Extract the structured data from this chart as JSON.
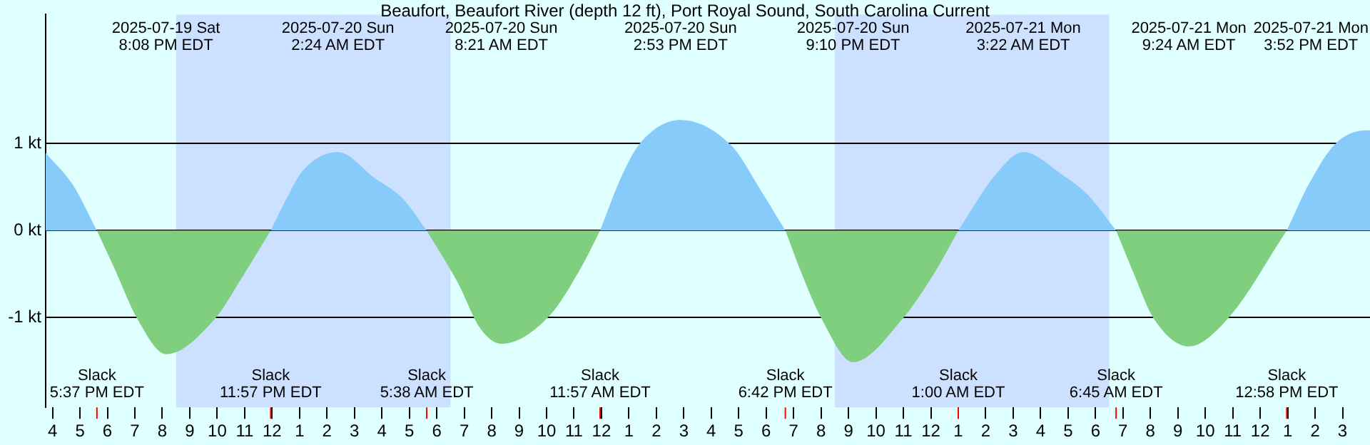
{
  "chart_data": {
    "type": "area",
    "title": "Beaufort, Beaufort River (depth 12 ft), Port Royal Sound, South Carolina Current",
    "x": [
      "2025-07-19T15:45",
      "2025-07-19T16:45",
      "2025-07-19T17:37",
      "2025-07-19T18:15",
      "2025-07-19T19:06",
      "2025-07-19T20:08",
      "2025-07-19T21:54",
      "2025-07-19T22:54",
      "2025-07-19T23:57",
      "2025-07-20T00:30",
      "2025-07-20T01:06",
      "2025-07-20T02:24",
      "2025-07-20T03:45",
      "2025-07-20T04:45",
      "2025-07-20T05:38",
      "2025-07-20T06:45",
      "2025-07-20T07:36",
      "2025-07-20T08:21",
      "2025-07-20T10:06",
      "2025-07-20T11:15",
      "2025-07-20T11:57",
      "2025-07-20T12:42",
      "2025-07-20T13:24",
      "2025-07-20T14:53",
      "2025-07-20T16:45",
      "2025-07-20T17:45",
      "2025-07-20T18:42",
      "2025-07-20T19:18",
      "2025-07-20T20:00",
      "2025-07-20T21:10",
      "2025-07-20T23:00",
      "2025-07-21T00:12",
      "2025-07-21T01:00",
      "2025-07-21T01:36",
      "2025-07-21T02:15",
      "2025-07-21T03:22",
      "2025-07-21T04:45",
      "2025-07-21T05:45",
      "2025-07-21T06:45",
      "2025-07-21T07:24",
      "2025-07-21T08:06",
      "2025-07-21T09:24",
      "2025-07-21T10:51",
      "2025-07-21T12:58",
      "2025-07-21T13:48",
      "2025-07-21T14:45",
      "2025-07-21T15:52",
      "2025-07-21T16:00"
    ],
    "series": [
      {
        "color": "#87cbfb",
        "values": [
          0.89,
          0.52,
          0,
          null,
          null,
          null,
          null,
          null,
          0,
          0.35,
          0.68,
          0.9,
          0.6,
          0.37,
          0,
          null,
          null,
          null,
          null,
          null,
          0,
          0.6,
          1.0,
          1.27,
          0.97,
          0.49,
          0,
          null,
          null,
          null,
          null,
          null,
          0,
          0.3,
          0.6,
          0.9,
          0.65,
          0.4,
          0,
          null,
          null,
          null,
          null,
          0,
          0.55,
          1.0,
          1.15,
          1.15
        ]
      },
      {
        "color": "#7fcf7f",
        "values": [
          null,
          null,
          0,
          -0.43,
          -1.02,
          -1.42,
          -1.02,
          -0.54,
          0,
          null,
          null,
          null,
          null,
          null,
          0,
          -0.59,
          -1.13,
          -1.3,
          -0.98,
          -0.43,
          0,
          null,
          null,
          null,
          null,
          null,
          0,
          -0.5,
          -1.0,
          -1.51,
          -1.0,
          -0.45,
          0,
          null,
          null,
          null,
          null,
          null,
          0,
          -0.5,
          -1.0,
          -1.33,
          -1.0,
          0,
          null,
          null,
          null,
          null
        ]
      }
    ],
    "xlim": [
      "2025-07-19T15:45",
      "2025-07-21T16:00"
    ],
    "xticks": [
      {
        "value": "2025-07-19T16:00",
        "label": "4"
      },
      {
        "value": "2025-07-19T17:00",
        "label": "5"
      },
      {
        "value": "2025-07-19T18:00",
        "label": "6"
      },
      {
        "value": "2025-07-19T19:00",
        "label": "7"
      },
      {
        "value": "2025-07-19T20:00",
        "label": "8"
      },
      {
        "value": "2025-07-19T21:00",
        "label": "9"
      },
      {
        "value": "2025-07-19T22:00",
        "label": "10"
      },
      {
        "value": "2025-07-19T23:00",
        "label": "11"
      },
      {
        "value": "2025-07-20T00:00",
        "label": "12"
      },
      {
        "value": "2025-07-20T01:00",
        "label": "1"
      },
      {
        "value": "2025-07-20T02:00",
        "label": "2"
      },
      {
        "value": "2025-07-20T03:00",
        "label": "3"
      },
      {
        "value": "2025-07-20T04:00",
        "label": "4"
      },
      {
        "value": "2025-07-20T05:00",
        "label": "5"
      },
      {
        "value": "2025-07-20T06:00",
        "label": "6"
      },
      {
        "value": "2025-07-20T07:00",
        "label": "7"
      },
      {
        "value": "2025-07-20T08:00",
        "label": "8"
      },
      {
        "value": "2025-07-20T09:00",
        "label": "9"
      },
      {
        "value": "2025-07-20T10:00",
        "label": "10"
      },
      {
        "value": "2025-07-20T11:00",
        "label": "11"
      },
      {
        "value": "2025-07-20T12:00",
        "label": "12"
      },
      {
        "value": "2025-07-20T13:00",
        "label": "1"
      },
      {
        "value": "2025-07-20T14:00",
        "label": "2"
      },
      {
        "value": "2025-07-20T15:00",
        "label": "3"
      },
      {
        "value": "2025-07-20T16:00",
        "label": "4"
      },
      {
        "value": "2025-07-20T17:00",
        "label": "5"
      },
      {
        "value": "2025-07-20T18:00",
        "label": "6"
      },
      {
        "value": "2025-07-20T19:00",
        "label": "7"
      },
      {
        "value": "2025-07-20T20:00",
        "label": "8"
      },
      {
        "value": "2025-07-20T21:00",
        "label": "9"
      },
      {
        "value": "2025-07-20T22:00",
        "label": "10"
      },
      {
        "value": "2025-07-20T23:00",
        "label": "11"
      },
      {
        "value": "2025-07-21T00:00",
        "label": "12"
      },
      {
        "value": "2025-07-21T01:00",
        "label": "1"
      },
      {
        "value": "2025-07-21T02:00",
        "label": "2"
      },
      {
        "value": "2025-07-21T03:00",
        "label": "3"
      },
      {
        "value": "2025-07-21T04:00",
        "label": "4"
      },
      {
        "value": "2025-07-21T05:00",
        "label": "5"
      },
      {
        "value": "2025-07-21T06:00",
        "label": "6"
      },
      {
        "value": "2025-07-21T07:00",
        "label": "7"
      },
      {
        "value": "2025-07-21T08:00",
        "label": "8"
      },
      {
        "value": "2025-07-21T09:00",
        "label": "9"
      },
      {
        "value": "2025-07-21T10:00",
        "label": "10"
      },
      {
        "value": "2025-07-21T11:00",
        "label": "11"
      },
      {
        "value": "2025-07-21T12:00",
        "label": "12"
      },
      {
        "value": "2025-07-21T13:00",
        "label": "1"
      },
      {
        "value": "2025-07-21T14:00",
        "label": "2"
      },
      {
        "value": "2025-07-21T15:00",
        "label": "3"
      }
    ],
    "ylim": [
      -2.03,
      2.48
    ],
    "yticks": [
      {
        "value": -1,
        "label": "-1 kt"
      },
      {
        "value": 0,
        "label": "0 kt"
      },
      {
        "value": 1,
        "label": "1 kt"
      }
    ],
    "grid": "y",
    "bands": [
      {
        "axis": "x",
        "from": "2025-07-19T20:30",
        "to": "2025-07-20T06:30",
        "color": "#cce0ff"
      },
      {
        "axis": "x",
        "from": "2025-07-20T20:30",
        "to": "2025-07-21T06:30",
        "color": "#cce0ff"
      }
    ],
    "annotations": [
      {
        "text": "Slack\n5:37 PM EDT",
        "x": "2025-07-19T17:37"
      },
      "2025-07-19 Sat\n8:08 PM EDT",
      {
        "text": "Slack\n11:57 PM EDT",
        "x": "2025-07-19T23:57"
      },
      "2025-07-20 Sun\n2:24 AM EDT",
      {
        "text": "Slack\n5:38 AM EDT",
        "x": "2025-07-20T05:38"
      },
      "2025-07-20 Sun\n8:21 AM EDT",
      {
        "text": "Slack\n11:57 AM EDT",
        "x": "2025-07-20T11:57"
      },
      "2025-07-20 Sun\n2:53 PM EDT",
      {
        "text": "Slack\n6:42 PM EDT",
        "x": "2025-07-20T18:42"
      },
      "2025-07-20 Sun\n9:10 PM EDT",
      {
        "text": "Slack\n1:00 AM EDT",
        "x": "2025-07-21T01:00"
      },
      "2025-07-21 Mon\n3:22 AM EDT",
      {
        "text": "Slack\n6:45 AM EDT",
        "x": "2025-07-21T06:45"
      },
      "2025-07-21 Mon\n9:24 AM EDT",
      {
        "text": "Slack\n12:58 PM EDT",
        "x": "2025-07-21T12:58"
      },
      "2025-07-21 Mon\n3:52 PM EDT"
    ]
  }
}
